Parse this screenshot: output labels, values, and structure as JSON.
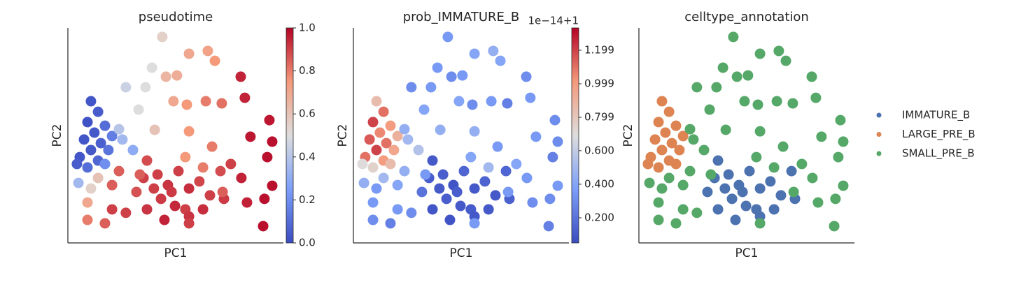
{
  "chart_data": [
    {
      "type": "scatter",
      "title": "pseudotime",
      "x_label": "PC1",
      "y_label": "PC2",
      "xlim": [
        0,
        100
      ],
      "ylim": [
        0,
        100
      ],
      "colormap": "coolwarm",
      "clim": [
        0,
        1
      ],
      "colorbar_ticks": [
        {
          "value": 0,
          "label": "0.0"
        },
        0.2,
        0.4,
        0.6,
        0.8,
        {
          "value": 1,
          "label": "1.0"
        }
      ],
      "x": [
        10.7,
        14.0,
        9.1,
        12.3,
        17.2,
        7.5,
        15.3,
        10.7,
        18.8,
        14.0,
        5.5,
        9.1,
        20.5,
        17.2,
        4.2,
        36.7,
        41.6,
        46.4,
        51.3,
        56.2,
        43.2,
        49.7,
        36.7,
        54.5,
        61.0,
        65.9,
        72.4,
        70.8,
        44.8,
        56.2,
        31.8,
        35.1,
        62.7,
        48.1,
        39.9,
        43.8,
        56.2,
        64.9,
        68.2,
        39.0,
        45.5,
        50.6,
        26.9,
        36.0,
        32.8,
        40.3,
        49.0,
        55.2,
        64.0,
        71.4,
        80.2,
        82.1,
        84.7,
        93.5,
        94.8,
        92.5,
        94.8,
        91.2,
        90.6,
        83.1,
        80.5,
        75.6,
        66.9,
        56.2,
        54.5,
        71.8,
        62.7,
        23.7,
        14.0,
        20.5,
        9.1,
        10.7,
        17.2,
        9.1,
        26.9,
        20.5,
        4.9,
        30.2,
        25.3,
        23.7,
        33.4,
        56.2
      ],
      "y": [
        65.9,
        61.0,
        56.2,
        51.3,
        54.5,
        48.1,
        46.4,
        43.2,
        43.2,
        38.3,
        39.9,
        35.1,
        49.7,
        36.7,
        36.7,
        38.3,
        31.8,
        26.9,
        33.4,
        25.3,
        20.5,
        17.2,
        15.6,
        15.6,
        28.6,
        22.1,
        20.5,
        33.4,
        10.7,
        12.3,
        23.7,
        30.2,
        15.6,
        23.7,
        25.3,
        95.8,
        88.0,
        89.3,
        84.7,
        81.5,
        77.3,
        77.9,
        72.4,
        72.4,
        62.0,
        52.6,
        65.9,
        64.3,
        65.9,
        64.9,
        77.3,
        67.5,
        49.4,
        57.1,
        47.1,
        39.9,
        26.6,
        20.5,
        7.8,
        18.8,
        30.2,
        36.7,
        44.8,
        51.9,
        39.9,
        23.7,
        35.1,
        33.4,
        30.2,
        26.9,
        18.8,
        25.3,
        9.1,
        10.7,
        14.0,
        15.6,
        27.9,
        43.2,
        48.1,
        52.9,
        31.8,
        9.1
      ],
      "values": [
        0.03,
        0.05,
        0.02,
        0.04,
        0.1,
        0.03,
        0.06,
        0.04,
        0.12,
        0.08,
        0.03,
        0.1,
        0.15,
        0.2,
        0.05,
        0.88,
        0.9,
        0.92,
        0.9,
        0.93,
        0.91,
        0.94,
        0.92,
        0.9,
        0.89,
        0.9,
        0.91,
        0.88,
        0.95,
        0.92,
        0.87,
        0.9,
        0.93,
        0.91,
        0.9,
        0.55,
        0.7,
        0.72,
        0.75,
        0.5,
        0.65,
        0.68,
        0.45,
        0.5,
        0.5,
        0.6,
        0.7,
        0.75,
        0.8,
        0.82,
        0.95,
        0.95,
        0.97,
        0.97,
        0.98,
        0.98,
        0.98,
        0.98,
        0.98,
        0.95,
        0.95,
        0.9,
        0.8,
        0.75,
        0.75,
        0.85,
        0.8,
        0.85,
        0.6,
        0.85,
        0.7,
        0.55,
        0.85,
        0.8,
        0.9,
        0.9,
        0.35,
        0.3,
        0.35,
        0.4,
        0.85,
        0.9
      ]
    },
    {
      "type": "scatter",
      "title": "prob_IMMATURE_B",
      "x_label": "PC1",
      "y_label": "PC2",
      "xlim": [
        0,
        100
      ],
      "ylim": [
        0,
        100
      ],
      "colormap": "coolwarm",
      "clim": [
        0.05,
        1.332
      ],
      "colorbar_offset": "1e−14+1",
      "colorbar_ticks": [
        {
          "value": 0.2,
          "label": "0.200"
        },
        {
          "value": 0.4,
          "label": "0.400"
        },
        {
          "value": 0.6,
          "label": "0.600"
        },
        0.799,
        0.999,
        1.199
      ],
      "x": [
        10.7,
        14.0,
        9.1,
        12.3,
        17.2,
        7.5,
        15.3,
        10.7,
        18.8,
        14.0,
        5.5,
        9.1,
        20.5,
        17.2,
        4.2,
        36.7,
        41.6,
        46.4,
        51.3,
        56.2,
        43.2,
        49.7,
        36.7,
        54.5,
        61.0,
        65.9,
        72.4,
        70.8,
        44.8,
        56.2,
        31.8,
        35.1,
        62.7,
        48.1,
        39.9,
        43.8,
        56.2,
        64.9,
        68.2,
        39.0,
        45.5,
        50.6,
        26.9,
        36.0,
        32.8,
        40.3,
        49.0,
        55.2,
        64.0,
        71.4,
        80.2,
        82.1,
        84.7,
        93.5,
        94.8,
        92.5,
        94.8,
        91.2,
        90.6,
        83.1,
        80.5,
        75.6,
        66.9,
        56.2,
        54.5,
        71.8,
        62.7,
        23.7,
        14.0,
        20.5,
        9.1,
        10.7,
        17.2,
        9.1,
        26.9,
        20.5,
        4.9,
        30.2,
        25.3,
        23.7,
        33.4,
        56.2
      ],
      "y": [
        65.9,
        61.0,
        56.2,
        51.3,
        54.5,
        48.1,
        46.4,
        43.2,
        43.2,
        38.3,
        39.9,
        35.1,
        49.7,
        36.7,
        36.7,
        38.3,
        31.8,
        26.9,
        33.4,
        25.3,
        20.5,
        17.2,
        15.6,
        15.6,
        28.6,
        22.1,
        20.5,
        33.4,
        10.7,
        12.3,
        23.7,
        30.2,
        15.6,
        23.7,
        25.3,
        95.8,
        88.0,
        89.3,
        84.7,
        81.5,
        77.3,
        77.9,
        72.4,
        72.4,
        62.0,
        52.6,
        65.9,
        64.3,
        65.9,
        64.9,
        77.3,
        67.5,
        49.4,
        57.1,
        47.1,
        39.9,
        26.6,
        20.5,
        7.8,
        18.8,
        30.2,
        36.7,
        44.8,
        51.9,
        39.9,
        23.7,
        35.1,
        33.4,
        30.2,
        26.9,
        18.8,
        25.3,
        9.1,
        10.7,
        14.0,
        15.6,
        27.9,
        43.2,
        48.1,
        52.9,
        31.8,
        9.1
      ],
      "values": [
        0.85,
        1.1,
        1.2,
        1.05,
        1.0,
        1.15,
        1.1,
        1.2,
        0.95,
        1.0,
        1.1,
        0.75,
        0.9,
        0.85,
        0.7,
        0.1,
        0.12,
        0.08,
        0.15,
        0.1,
        0.12,
        0.1,
        0.09,
        0.11,
        0.14,
        0.1,
        0.13,
        0.15,
        0.08,
        0.1,
        0.2,
        0.12,
        0.1,
        0.12,
        0.1,
        0.35,
        0.4,
        0.45,
        0.4,
        0.35,
        0.3,
        0.35,
        0.3,
        0.35,
        0.4,
        0.45,
        0.4,
        0.3,
        0.35,
        0.25,
        0.3,
        0.35,
        0.35,
        0.3,
        0.3,
        0.25,
        0.35,
        0.3,
        0.25,
        0.3,
        0.35,
        0.4,
        0.35,
        0.45,
        0.4,
        0.35,
        0.5,
        0.45,
        0.5,
        0.4,
        0.35,
        0.35,
        0.25,
        0.3,
        0.3,
        0.35,
        0.45,
        0.55,
        0.5,
        0.45,
        0.35,
        0.35
      ]
    },
    {
      "type": "scatter",
      "title": "celltype_annotation",
      "x_label": "PC1",
      "y_label": "PC2",
      "xlim": [
        0,
        100
      ],
      "ylim": [
        0,
        100
      ],
      "legend": "outside right",
      "series": [
        {
          "name": "IMMATURE_B",
          "color": "#4c72b0",
          "x": [
            36.7,
            41.6,
            46.4,
            51.3,
            56.2,
            43.2,
            49.7,
            36.7,
            54.5,
            61.0,
            65.9,
            72.4,
            70.8,
            44.8,
            56.2,
            31.8,
            35.1,
            62.7,
            48.1,
            39.9
          ],
          "y": [
            38.3,
            31.8,
            26.9,
            33.4,
            25.3,
            20.5,
            17.2,
            15.6,
            15.6,
            28.6,
            22.1,
            20.5,
            33.4,
            10.7,
            12.3,
            23.7,
            30.2,
            15.6,
            23.7,
            25.3
          ]
        },
        {
          "name": "LARGE_PRE_B",
          "color": "#dd8452",
          "x": [
            10.7,
            14.0,
            9.1,
            12.3,
            17.2,
            7.5,
            15.3,
            10.7,
            18.8,
            14.0,
            5.5,
            9.1,
            20.5,
            17.2,
            4.2
          ],
          "y": [
            65.9,
            61.0,
            56.2,
            51.3,
            54.5,
            48.1,
            46.4,
            43.2,
            43.2,
            38.3,
            39.9,
            35.1,
            49.7,
            36.7,
            36.7
          ]
        },
        {
          "name": "SMALL_PRE_B",
          "color": "#55a868",
          "x": [
            43.8,
            56.2,
            64.9,
            68.2,
            39.0,
            45.5,
            50.6,
            26.9,
            36.0,
            32.8,
            40.3,
            49.0,
            55.2,
            64.0,
            71.4,
            80.2,
            82.1,
            84.7,
            93.5,
            94.8,
            92.5,
            94.8,
            91.2,
            90.6,
            83.1,
            80.5,
            75.6,
            66.9,
            56.2,
            54.5,
            71.8,
            62.7,
            23.7,
            14.0,
            20.5,
            9.1,
            10.7,
            17.2,
            9.1,
            26.9,
            20.5,
            4.9,
            30.2,
            25.3,
            23.7,
            33.4,
            56.2
          ],
          "y": [
            95.8,
            88.0,
            89.3,
            84.7,
            81.5,
            77.3,
            77.9,
            72.4,
            72.4,
            62.0,
            52.6,
            65.9,
            64.3,
            65.9,
            64.9,
            77.3,
            67.5,
            49.4,
            57.1,
            47.1,
            39.9,
            26.6,
            20.5,
            7.8,
            18.8,
            30.2,
            36.7,
            44.8,
            51.9,
            39.9,
            23.7,
            35.1,
            33.4,
            30.2,
            26.9,
            18.8,
            25.3,
            9.1,
            10.7,
            14.0,
            15.6,
            27.9,
            43.2,
            48.1,
            52.9,
            31.8,
            9.1
          ]
        }
      ]
    }
  ]
}
